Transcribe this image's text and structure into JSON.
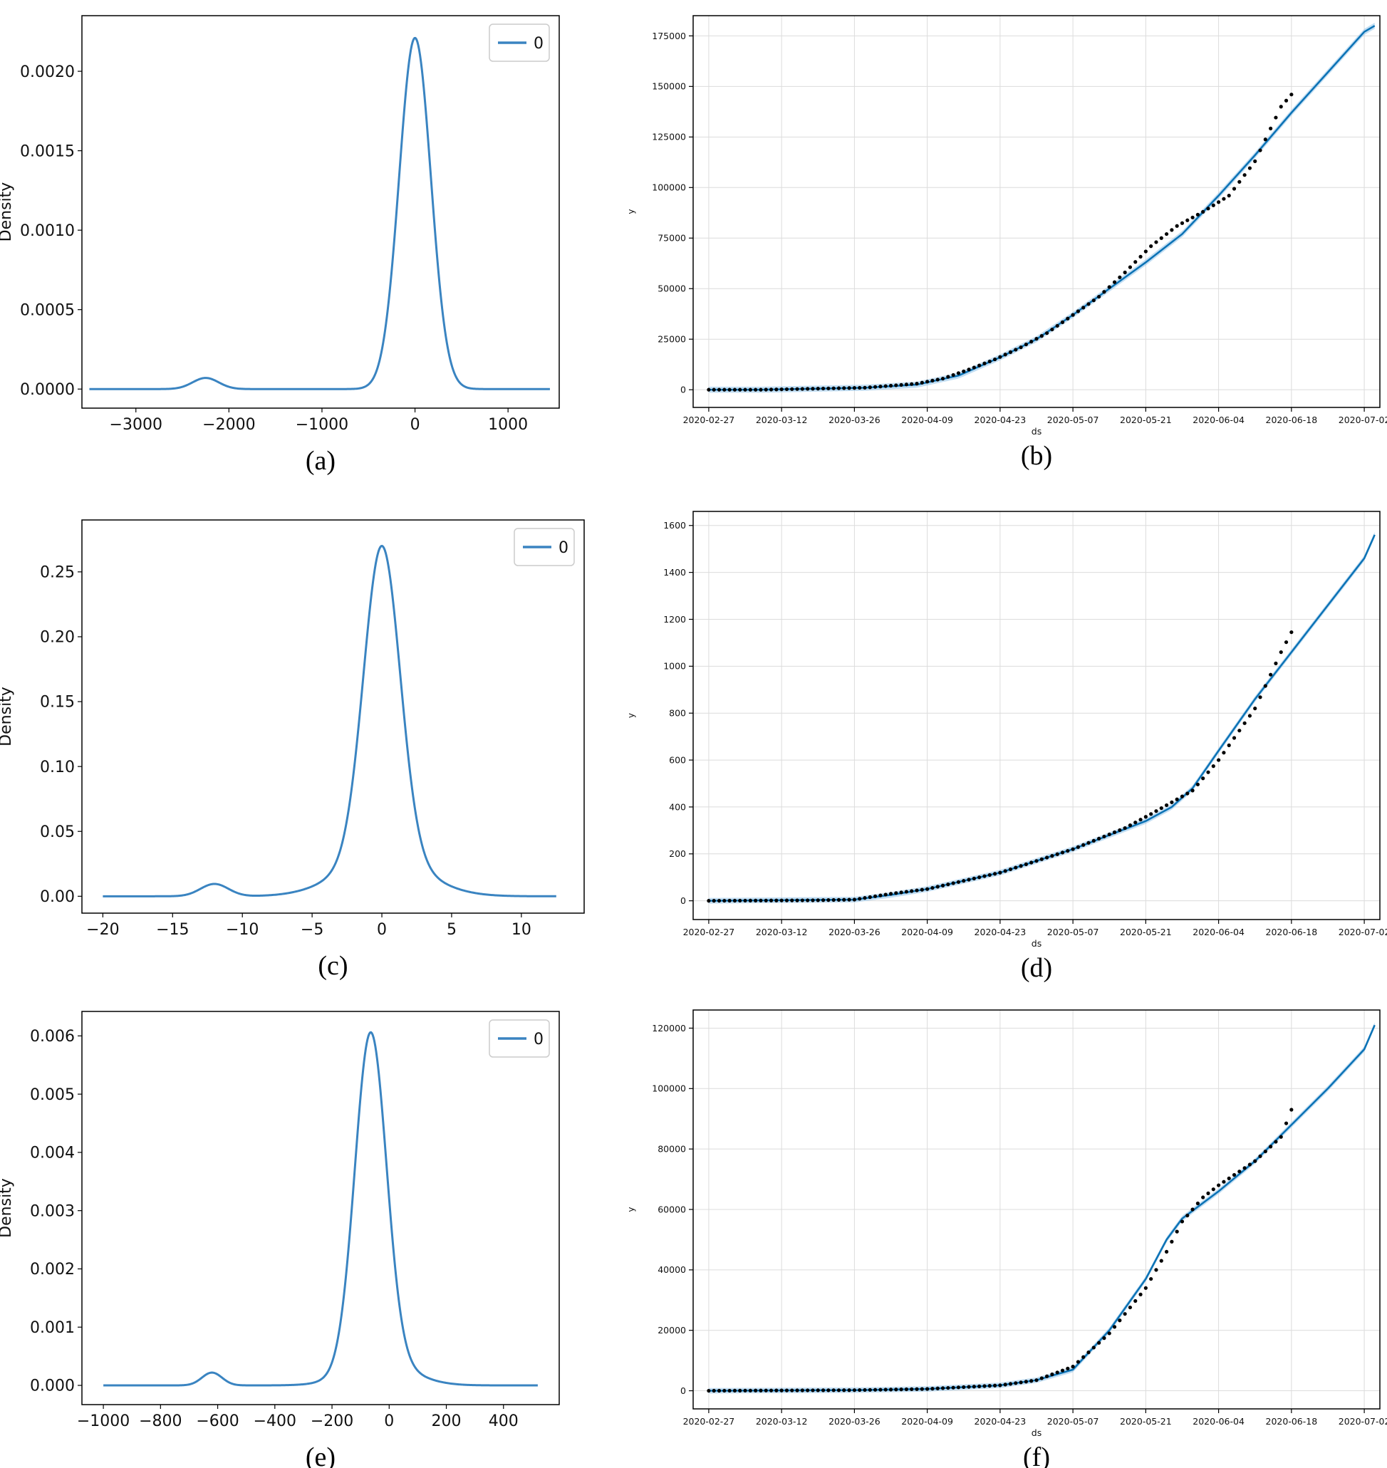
{
  "charts": [
    {
      "type": "line",
      "title": "",
      "xlabel": "",
      "ylabel": "Density",
      "caption": "(a)",
      "legend": "0",
      "legend_position": "top-right",
      "grid": false,
      "xlim": [
        -3580,
        1550
      ],
      "ylim": [
        -0.00012,
        0.00235
      ],
      "xticks": [
        -3000,
        -2000,
        -1000,
        0,
        1000
      ],
      "xtick_labels": [
        "−3000",
        "−2000",
        "−1000",
        "0",
        "1000"
      ],
      "yticks": [
        0,
        0.0005,
        0.001,
        0.0015,
        0.002
      ],
      "ytick_labels": [
        "0.0000",
        "0.0005",
        "0.0010",
        "0.0015",
        "0.0020"
      ],
      "series": [
        {
          "name": "0",
          "x_range": [
            -3500,
            1450
          ],
          "components": [
            {
              "mean": -2250,
              "sd": 140,
              "peak": 7e-05
            },
            {
              "mean": 0,
              "sd": 170,
              "peak": 0.00221
            }
          ]
        }
      ]
    },
    {
      "type": "line",
      "title": "",
      "xlabel": "ds",
      "ylabel": "y",
      "caption": "(b)",
      "grid": true,
      "xlim": [
        -3,
        129
      ],
      "ylim": [
        -8750,
        185000
      ],
      "xticks": [
        0,
        14,
        28,
        42,
        56,
        70,
        84,
        98,
        112,
        126
      ],
      "xtick_labels": [
        "2020-02-27",
        "2020-03-12",
        "2020-03-26",
        "2020-04-09",
        "2020-04-23",
        "2020-05-07",
        "2020-05-21",
        "2020-06-04",
        "2020-06-18",
        "2020-07-02"
      ],
      "yticks": [
        0,
        25000,
        50000,
        75000,
        100000,
        125000,
        150000,
        175000
      ],
      "ytick_labels": [
        "0",
        "25000",
        "50000",
        "75000",
        "100000",
        "125000",
        "150000",
        "175000"
      ],
      "forecast": {
        "x": [
          0,
          10,
          20,
          30,
          40,
          48,
          56,
          63,
          70,
          77,
          84,
          91,
          98,
          105,
          112,
          119,
          126,
          128
        ],
        "y": [
          0,
          0,
          500,
          1000,
          2500,
          7000,
          16000,
          25000,
          37000,
          50000,
          63000,
          77000,
          96000,
          116000,
          137000,
          157000,
          177000,
          180000
        ],
        "band": 1500
      },
      "actual": {
        "x_start": 0,
        "x_end": 112,
        "x": [
          0,
          10,
          20,
          30,
          40,
          45,
          50,
          55,
          60,
          65,
          70,
          75,
          80,
          85,
          90,
          95,
          100,
          105,
          110,
          112
        ],
        "y": [
          0,
          0,
          500,
          1000,
          3000,
          5500,
          10000,
          15000,
          21000,
          28000,
          37000,
          46000,
          58000,
          71000,
          81000,
          88000,
          96000,
          113000,
          140000,
          146000
        ]
      }
    },
    {
      "type": "line",
      "title": "",
      "xlabel": "",
      "ylabel": "Density",
      "caption": "(c)",
      "legend": "0",
      "legend_position": "top-right",
      "grid": false,
      "xlim": [
        -21.5,
        14.5
      ],
      "ylim": [
        -0.013,
        0.29
      ],
      "xticks": [
        -20,
        -15,
        -10,
        -5,
        0,
        5,
        10
      ],
      "xtick_labels": [
        "−20",
        "−15",
        "−10",
        "−5",
        "0",
        "5",
        "10"
      ],
      "yticks": [
        0,
        0.05,
        0.1,
        0.15,
        0.2,
        0.25
      ],
      "ytick_labels": [
        "0.00",
        "0.05",
        "0.10",
        "0.15",
        "0.20",
        "0.25"
      ],
      "series": [
        {
          "name": "0",
          "x_range": [
            -20,
            12.5
          ],
          "components": [
            {
              "mean": -12,
              "sd": 1.0,
              "peak": 0.0095
            },
            {
              "mean": 0,
              "sd": 1.3,
              "peak": 0.24
            },
            {
              "mean": 0,
              "sd": 3.0,
              "peak": 0.03
            }
          ]
        }
      ]
    },
    {
      "type": "line",
      "title": "",
      "xlabel": "ds",
      "ylabel": "y",
      "caption": "(d)",
      "grid": true,
      "xlim": [
        -3,
        129
      ],
      "ylim": [
        -80,
        1660
      ],
      "xticks": [
        0,
        14,
        28,
        42,
        56,
        70,
        84,
        98,
        112,
        126
      ],
      "xtick_labels": [
        "2020-02-27",
        "2020-03-12",
        "2020-03-26",
        "2020-04-09",
        "2020-04-23",
        "2020-05-07",
        "2020-05-21",
        "2020-06-04",
        "2020-06-18",
        "2020-07-02"
      ],
      "yticks": [
        0,
        200,
        400,
        600,
        800,
        1000,
        1200,
        1400,
        1600
      ],
      "ytick_labels": [
        "0",
        "200",
        "400",
        "600",
        "800",
        "1000",
        "1200",
        "1400",
        "1600"
      ],
      "forecast": {
        "x": [
          0,
          28,
          35,
          42,
          56,
          70,
          84,
          89,
          93,
          98,
          105,
          112,
          119,
          126,
          128
        ],
        "y": [
          0,
          5,
          25,
          50,
          120,
          220,
          340,
          400,
          480,
          640,
          860,
          1060,
          1260,
          1460,
          1560
        ],
        "band": 12
      },
      "actual": {
        "x_start": 0,
        "x_end": 112,
        "x": [
          0,
          20,
          28,
          35,
          42,
          56,
          70,
          80,
          85,
          89,
          93,
          98,
          105,
          110,
          112
        ],
        "y": [
          0,
          2,
          5,
          30,
          50,
          120,
          220,
          310,
          370,
          420,
          470,
          600,
          820,
          1060,
          1145
        ]
      }
    },
    {
      "type": "line",
      "title": "",
      "xlabel": "",
      "ylabel": "Density",
      "caption": "(e)",
      "legend": "0",
      "legend_position": "top-right",
      "grid": false,
      "xlim": [
        -1075,
        595
      ],
      "ylim": [
        -0.00033,
        0.00642
      ],
      "xticks": [
        -1000,
        -800,
        -600,
        -400,
        -200,
        0,
        200,
        400
      ],
      "xtick_labels": [
        "−1000",
        "−800",
        "−600",
        "−400",
        "−200",
        "0",
        "200",
        "400"
      ],
      "yticks": [
        0,
        0.001,
        0.002,
        0.003,
        0.004,
        0.005,
        0.006
      ],
      "ytick_labels": [
        "0.000",
        "0.001",
        "0.002",
        "0.003",
        "0.004",
        "0.005",
        "0.006"
      ],
      "series": [
        {
          "name": "0",
          "x_range": [
            -1000,
            520
          ],
          "components": [
            {
              "mean": -620,
              "sd": 35,
              "peak": 0.00022
            },
            {
              "mean": -65,
              "sd": 55,
              "peak": 0.0057
            },
            {
              "mean": -30,
              "sd": 110,
              "peak": 0.00038
            }
          ]
        }
      ]
    },
    {
      "type": "line",
      "title": "",
      "xlabel": "ds",
      "ylabel": "y",
      "caption": "(f)",
      "grid": true,
      "xlim": [
        -3,
        129
      ],
      "ylim": [
        -6000,
        126000
      ],
      "xticks": [
        0,
        14,
        28,
        42,
        56,
        70,
        84,
        98,
        112,
        126
      ],
      "xtick_labels": [
        "2020-02-27",
        "2020-03-12",
        "2020-03-26",
        "2020-04-09",
        "2020-04-23",
        "2020-05-07",
        "2020-05-21",
        "2020-06-04",
        "2020-06-18",
        "2020-07-02"
      ],
      "yticks": [
        0,
        20000,
        40000,
        60000,
        80000,
        100000,
        120000
      ],
      "ytick_labels": [
        "0",
        "20000",
        "40000",
        "60000",
        "80000",
        "100000",
        "120000"
      ],
      "forecast": {
        "x": [
          0,
          28,
          42,
          56,
          63,
          70,
          77,
          84,
          88,
          91,
          98,
          105,
          112,
          119,
          126,
          128
        ],
        "y": [
          0,
          200,
          600,
          1800,
          3500,
          7000,
          20000,
          37000,
          50000,
          57000,
          66000,
          76000,
          88000,
          100000,
          113000,
          121000
        ],
        "band": 900
      },
      "actual": {
        "x_start": 0,
        "x_end": 112,
        "x": [
          0,
          28,
          42,
          56,
          63,
          70,
          77,
          84,
          88,
          91,
          95,
          98,
          105,
          110,
          112
        ],
        "y": [
          0,
          200,
          600,
          1800,
          3500,
          8000,
          19000,
          34000,
          46000,
          56000,
          64000,
          68000,
          76000,
          84000,
          93000
        ]
      }
    }
  ]
}
